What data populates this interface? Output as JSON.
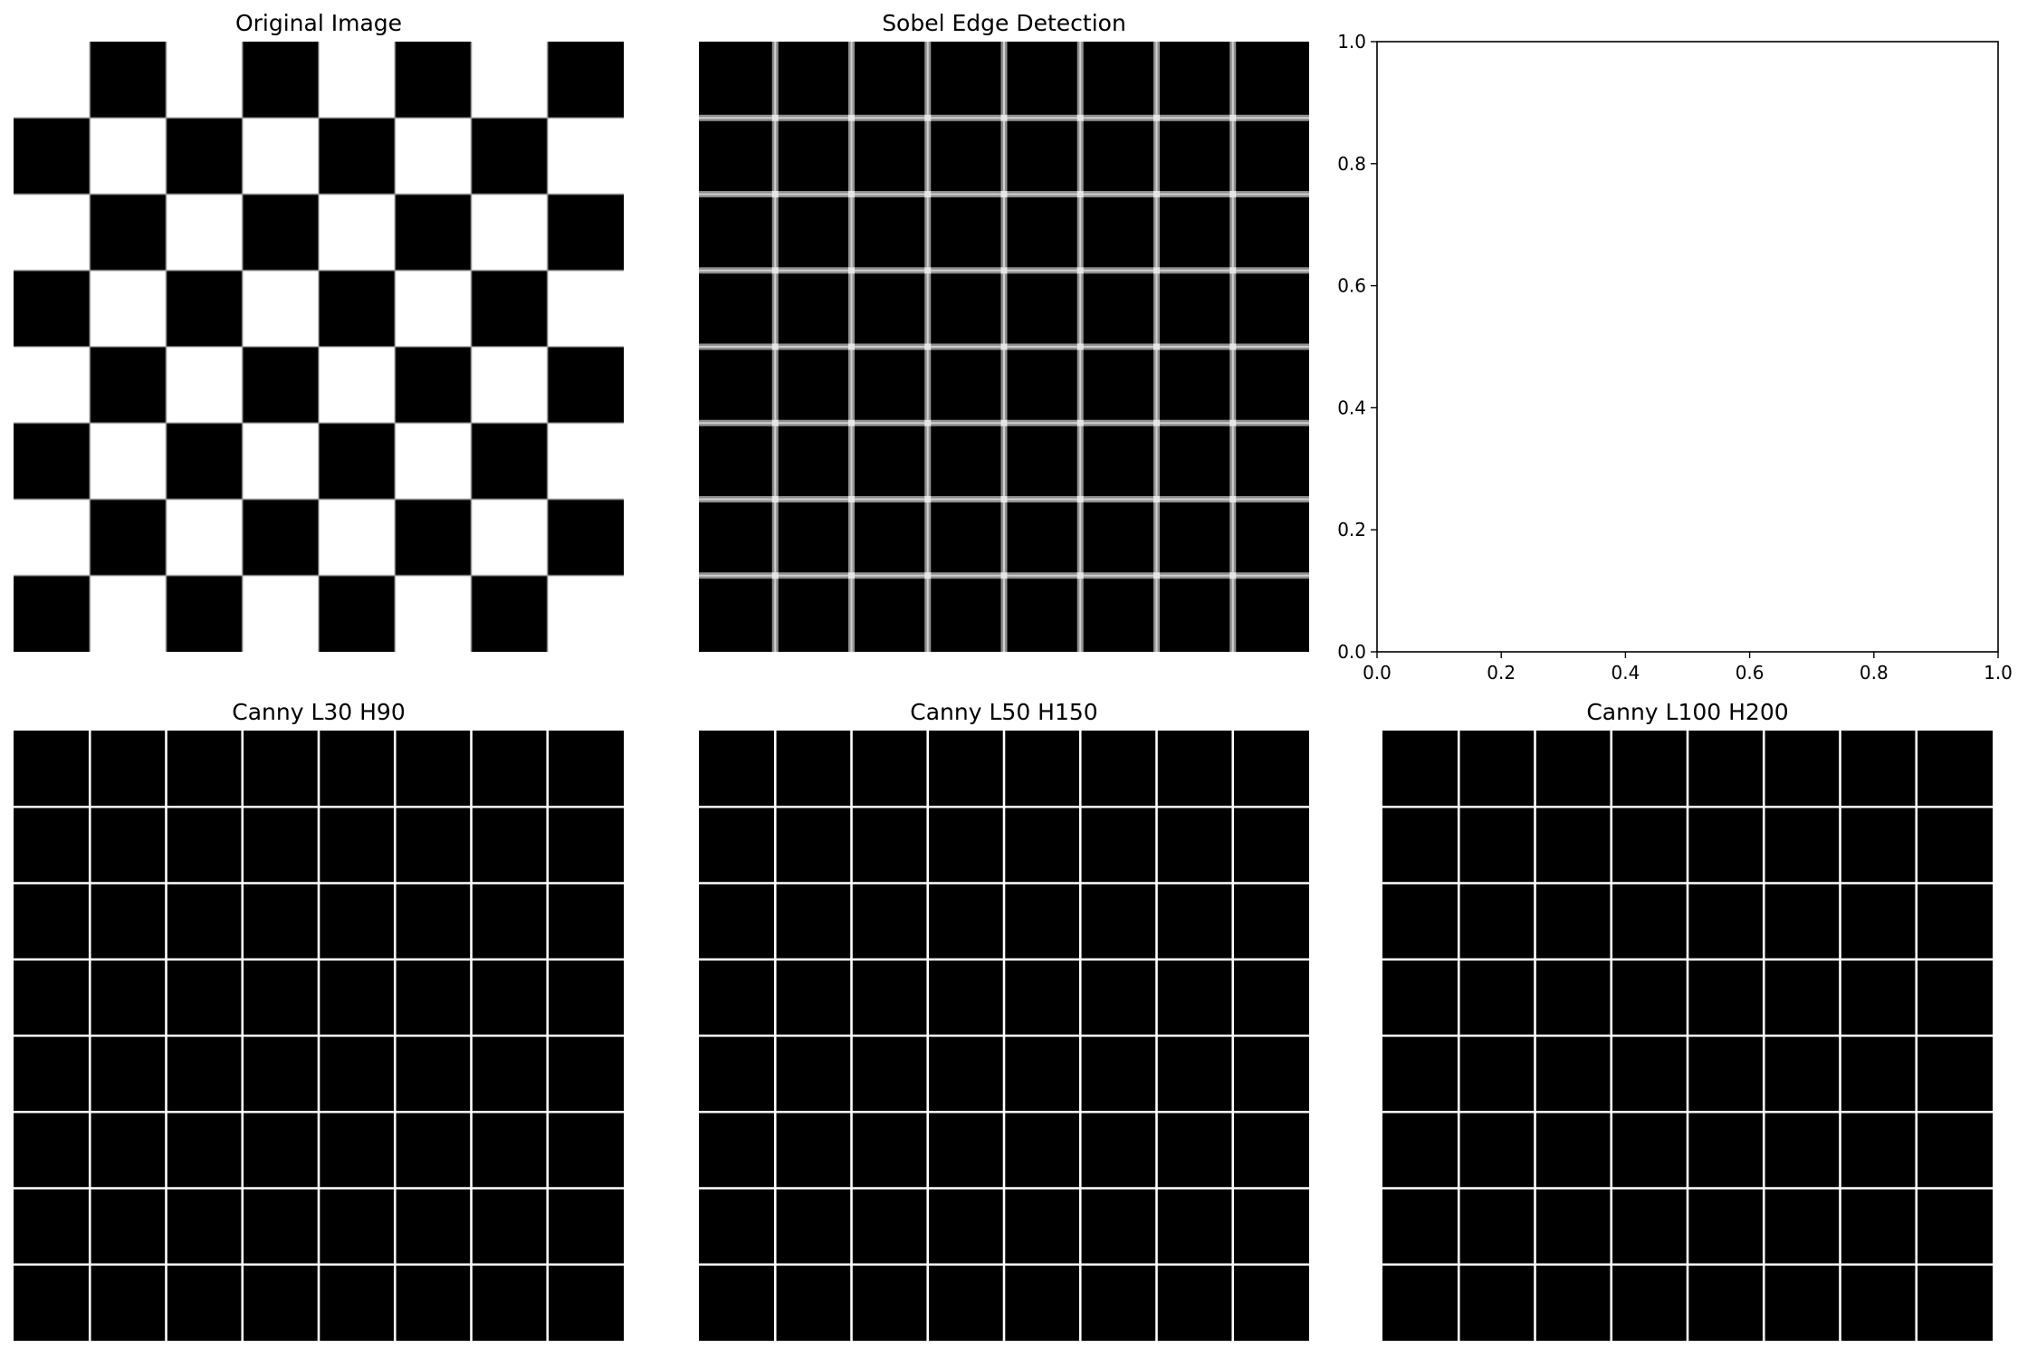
{
  "figure": {
    "background": "#ffffff",
    "colormap": "gray"
  },
  "chart_data": [
    {
      "id": "original",
      "type": "heatmap",
      "title": "Original Image",
      "pattern": "checkerboard",
      "grid": [
        8,
        8
      ],
      "top_left_cell": "white",
      "axis_visible": false
    },
    {
      "id": "sobel",
      "type": "heatmap",
      "title": "Sobel Edge Detection",
      "pattern": "edge-grid",
      "grid": [
        8,
        8
      ],
      "edge_color": "#8f8f8f",
      "axis_visible": false
    },
    {
      "id": "empty",
      "type": "line",
      "title": "",
      "series": [],
      "xlim": [
        0.0,
        1.0
      ],
      "ylim": [
        0.0,
        1.0
      ],
      "xticks": [
        "0.0",
        "0.2",
        "0.4",
        "0.6",
        "0.8",
        "1.0"
      ],
      "yticks": [
        "0.0",
        "0.2",
        "0.4",
        "0.6",
        "0.8",
        "1.0"
      ],
      "grid_on": false,
      "axis_visible": true
    },
    {
      "id": "canny-30-90",
      "type": "heatmap",
      "title": "Canny L30 H90",
      "pattern": "edge-grid",
      "grid": [
        8,
        8
      ],
      "edge_color": "#ffffff",
      "axis_visible": false
    },
    {
      "id": "canny-50-150",
      "type": "heatmap",
      "title": "Canny L50 H150",
      "pattern": "edge-grid",
      "grid": [
        8,
        8
      ],
      "edge_color": "#ffffff",
      "axis_visible": false
    },
    {
      "id": "canny-100-200",
      "type": "heatmap",
      "title": "Canny L100 H200",
      "pattern": "edge-grid",
      "grid": [
        8,
        8
      ],
      "edge_color": "#ffffff",
      "axis_visible": false
    }
  ]
}
